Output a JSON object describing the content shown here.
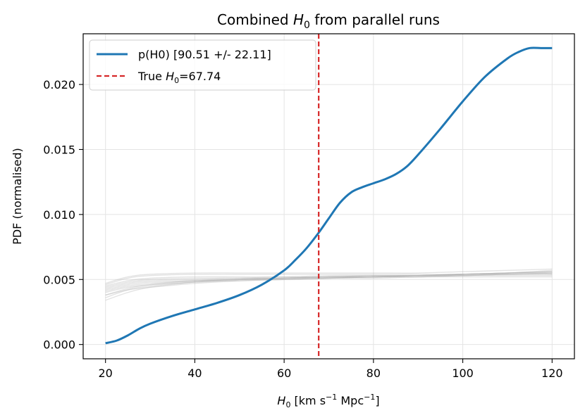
{
  "chart_data": {
    "type": "line",
    "title_prefix": "Combined ",
    "title_symbol": "H",
    "title_sub": "0",
    "title_suffix": " from parallel runs",
    "xlabel_symbol": "H",
    "xlabel_sub": "0",
    "xlabel_units_a": " [km s",
    "xlabel_sup_a": "−1",
    "xlabel_units_b": " Mpc",
    "xlabel_sup_b": "−1",
    "xlabel_units_c": "]",
    "ylabel": "PDF (normalised)",
    "xlim": [
      15,
      125
    ],
    "ylim": [
      -0.0011,
      0.0239
    ],
    "xticks": [
      20,
      40,
      60,
      80,
      100,
      120
    ],
    "xtick_labels": [
      "20",
      "40",
      "60",
      "80",
      "100",
      "120"
    ],
    "yticks": [
      0.0,
      0.005,
      0.01,
      0.015,
      0.02
    ],
    "ytick_labels": [
      "0.000",
      "0.005",
      "0.010",
      "0.015",
      "0.020"
    ],
    "grid": true,
    "legend_position": "top-left",
    "colors": {
      "combined": "#1f77b4",
      "true_line": "#d62728",
      "runs": "#b0b0b0"
    },
    "series": [
      {
        "name": "p(H0) [90.51 +/- 22.11]",
        "style": "solid",
        "x": [
          20,
          22.5,
          25,
          27.5,
          30,
          35,
          40,
          45,
          50,
          55,
          60,
          62.5,
          65,
          67.74,
          70,
          72.5,
          75,
          77.5,
          80,
          82.5,
          85,
          87.5,
          90,
          95,
          100,
          105,
          110,
          112.5,
          115,
          117.5,
          120
        ],
        "y": [
          0.0001,
          0.0003,
          0.0007,
          0.0012,
          0.0016,
          0.0022,
          0.0027,
          0.0032,
          0.0038,
          0.0046,
          0.0057,
          0.0065,
          0.0074,
          0.0086,
          0.0097,
          0.0109,
          0.0117,
          0.0121,
          0.0124,
          0.0127,
          0.0131,
          0.0137,
          0.0146,
          0.0166,
          0.0187,
          0.0206,
          0.022,
          0.0225,
          0.0228,
          0.0228,
          0.0228
        ]
      },
      {
        "name": "True H0=67.74",
        "legend_prefix": "True ",
        "legend_symbol": "H",
        "legend_sub": "0",
        "legend_suffix": "=67.74",
        "style": "dashed",
        "x": [
          67.74,
          67.74
        ]
      }
    ],
    "runs": {
      "x": [
        20,
        25,
        30,
        40,
        50,
        60,
        70,
        80,
        90,
        100,
        110,
        120
      ],
      "curves": [
        [
          0.0034,
          0.004,
          0.0044,
          0.0048,
          0.005,
          0.0051,
          0.0052,
          0.0053,
          0.0053,
          0.0054,
          0.0055,
          0.0056
        ],
        [
          0.0036,
          0.0042,
          0.0045,
          0.0048,
          0.005,
          0.0051,
          0.0052,
          0.0052,
          0.0053,
          0.0054,
          0.0054,
          0.0055
        ],
        [
          0.0038,
          0.0043,
          0.0046,
          0.0049,
          0.005,
          0.0051,
          0.0052,
          0.0052,
          0.0053,
          0.0053,
          0.0054,
          0.0054
        ],
        [
          0.004,
          0.0044,
          0.0046,
          0.0048,
          0.0049,
          0.005,
          0.0051,
          0.0052,
          0.0052,
          0.0053,
          0.0053,
          0.0053
        ],
        [
          0.0041,
          0.0045,
          0.0047,
          0.0049,
          0.005,
          0.0051,
          0.0051,
          0.0052,
          0.0052,
          0.0053,
          0.0054,
          0.0055
        ],
        [
          0.0042,
          0.0046,
          0.0048,
          0.0049,
          0.005,
          0.005,
          0.0051,
          0.0051,
          0.0052,
          0.0052,
          0.0052,
          0.0052
        ],
        [
          0.0043,
          0.0047,
          0.0049,
          0.005,
          0.0051,
          0.0052,
          0.0052,
          0.0053,
          0.0053,
          0.0054,
          0.0055,
          0.0056
        ],
        [
          0.0044,
          0.0048,
          0.005,
          0.0051,
          0.0051,
          0.0051,
          0.0052,
          0.0052,
          0.0053,
          0.0053,
          0.0054,
          0.0054
        ],
        [
          0.0045,
          0.0049,
          0.0051,
          0.0052,
          0.0052,
          0.0052,
          0.0053,
          0.0053,
          0.0053,
          0.0054,
          0.0055,
          0.0057
        ],
        [
          0.0046,
          0.0051,
          0.0053,
          0.0054,
          0.0054,
          0.0054,
          0.0054,
          0.0054,
          0.0054,
          0.0054,
          0.0055,
          0.0055
        ],
        [
          0.0047,
          0.0052,
          0.0054,
          0.0055,
          0.0055,
          0.0055,
          0.0055,
          0.0055,
          0.0055,
          0.0056,
          0.0057,
          0.0058
        ],
        [
          0.0038,
          0.0042,
          0.0044,
          0.0047,
          0.0049,
          0.005,
          0.0051,
          0.0052,
          0.0053,
          0.0054,
          0.0055,
          0.0056
        ]
      ]
    },
    "legend": {
      "combined_label": "p(H0) [90.51 +/- 22.11]",
      "true_prefix": "True ",
      "true_symbol": "H",
      "true_sub": "0",
      "true_suffix": "=67.74"
    }
  }
}
